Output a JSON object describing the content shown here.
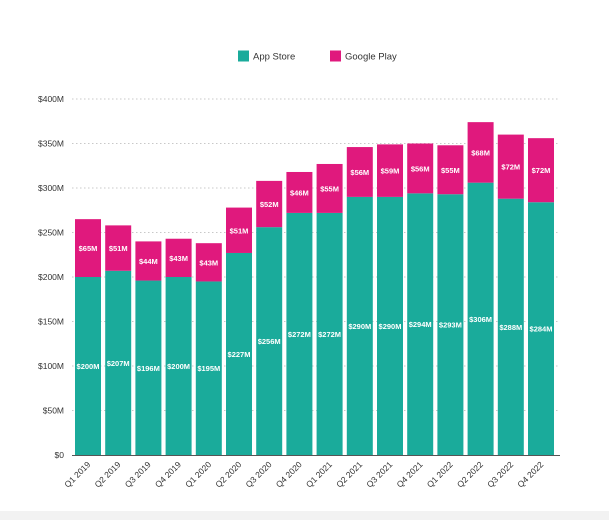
{
  "chart_data": {
    "type": "bar",
    "stacked": true,
    "categories": [
      "Q1 2019",
      "Q2 2019",
      "Q3 2019",
      "Q4 2019",
      "Q1 2020",
      "Q2 2020",
      "Q3 2020",
      "Q4 2020",
      "Q1 2021",
      "Q2 2021",
      "Q3 2021",
      "Q4 2021",
      "Q1 2022",
      "Q2 2022",
      "Q3 2022",
      "Q4 2022"
    ],
    "series": [
      {
        "name": "App Store",
        "color": "#1aab9b",
        "values": [
          200,
          207,
          196,
          200,
          195,
          227,
          256,
          272,
          272,
          290,
          290,
          294,
          293,
          306,
          288,
          284
        ],
        "labels": [
          "$200M",
          "$207M",
          "$196M",
          "$200M",
          "$195M",
          "$227M",
          "$256M",
          "$272M",
          "$272M",
          "$290M",
          "$290M",
          "$294M",
          "$293M",
          "$306M",
          "$288M",
          "$284M"
        ]
      },
      {
        "name": "Google Play",
        "color": "#e0197d",
        "values": [
          65,
          51,
          44,
          43,
          43,
          51,
          52,
          46,
          55,
          56,
          59,
          56,
          55,
          68,
          72,
          72
        ],
        "labels": [
          "$65M",
          "$51M",
          "$44M",
          "$43M",
          "$43M",
          "$51M",
          "$52M",
          "$46M",
          "$55M",
          "$56M",
          "$59M",
          "$56M",
          "$55M",
          "$68M",
          "$72M",
          "$72M"
        ]
      }
    ],
    "title": "",
    "xlabel": "",
    "ylabel": "",
    "ylim": [
      0,
      400
    ],
    "yticks": [
      0,
      50,
      100,
      150,
      200,
      250,
      300,
      350,
      400
    ],
    "ytick_labels": [
      "$0",
      "$50M",
      "$100M",
      "$150M",
      "$200M",
      "$250M",
      "$300M",
      "$350M",
      "$400M"
    ],
    "grid": "horizontal dotted",
    "legend_position": "top-center"
  }
}
